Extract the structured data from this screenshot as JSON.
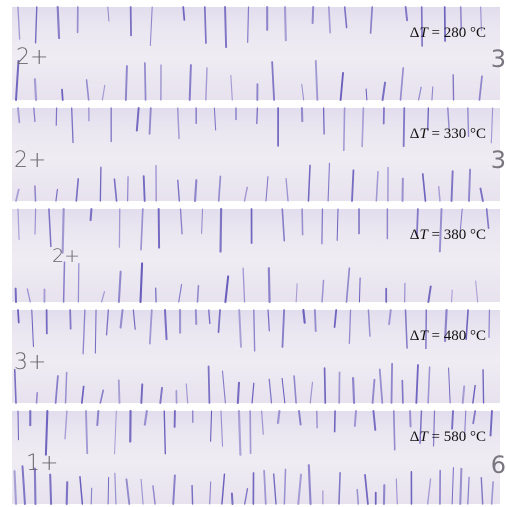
{
  "panels": [
    {
      "delta_symbol": "Δ",
      "var": "T",
      "value": "= 280 °C",
      "mark": "2+",
      "edge": "3"
    },
    {
      "delta_symbol": "Δ",
      "var": "T",
      "value": "= 330 °C",
      "mark": "2+",
      "edge": "3"
    },
    {
      "delta_symbol": "Δ",
      "var": "T",
      "value": "= 380 °C",
      "mark": "2+",
      "edge": ""
    },
    {
      "delta_symbol": "Δ",
      "var": "T",
      "value": "= 480 °C",
      "mark": "3+",
      "edge": ""
    },
    {
      "delta_symbol": "Δ",
      "var": "T",
      "value": "= 580 °C",
      "mark": "1+",
      "edge": "6"
    }
  ],
  "colors": {
    "crack": "#5b4fb6",
    "background": "#ece8f1"
  }
}
